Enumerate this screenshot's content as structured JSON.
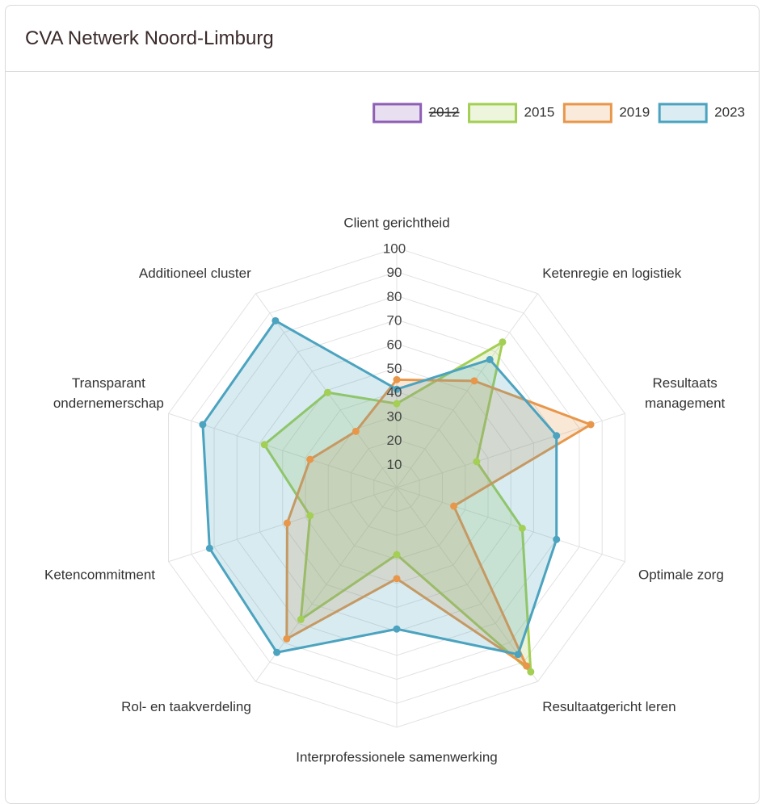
{
  "header": {
    "title": "CVA Netwerk Noord-Limburg"
  },
  "chart_data": {
    "type": "radar",
    "categories": [
      "Client gerichtheid",
      "Ketenregie en logistiek",
      [
        "Resultaats",
        "management"
      ],
      "Optimale zorg",
      "Resultaatgericht leren",
      "Interprofessionele samenwerking",
      "Rol- en taakverdeling",
      "Ketencommitment",
      [
        "Transparant",
        "ondernemerschap"
      ],
      "Additioneel cluster"
    ],
    "ylim": [
      0,
      100
    ],
    "yticks": [
      10,
      20,
      30,
      40,
      50,
      60,
      70,
      80,
      90,
      100
    ],
    "grid": true,
    "legend": "top-right",
    "series": [
      {
        "name": "2012",
        "color": "#8e5fb5",
        "hidden": true,
        "values": [
          null,
          null,
          null,
          null,
          null,
          null,
          null,
          null,
          null,
          null
        ]
      },
      {
        "name": "2015",
        "color": "#a3cf54",
        "hidden": false,
        "values": [
          35,
          75,
          35,
          55,
          95,
          28,
          68,
          38,
          58,
          49
        ]
      },
      {
        "name": "2019",
        "color": "#e8974a",
        "hidden": false,
        "values": [
          45,
          55,
          85,
          25,
          92,
          38,
          78,
          48,
          38,
          29
        ]
      },
      {
        "name": "2023",
        "color": "#4ba3bf",
        "hidden": false,
        "values": [
          41,
          66,
          70,
          70,
          86,
          59,
          85,
          82,
          85,
          86
        ]
      }
    ]
  }
}
